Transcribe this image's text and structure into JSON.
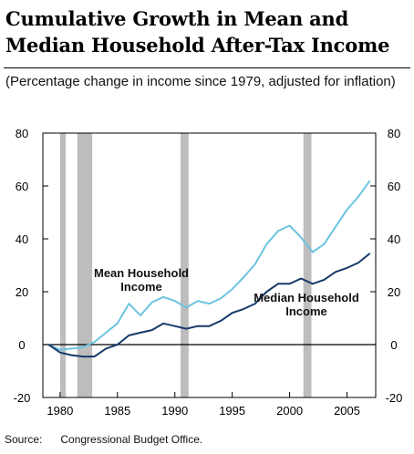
{
  "title": "Cumulative Growth in Mean and Median Household After-Tax Income",
  "subtitle": "(Percentage change in income since 1979, adjusted for inflation)",
  "source": {
    "label": "Source:",
    "text": "Congressional Budget Office."
  },
  "colors": {
    "mean": "#6cc3df",
    "median": "#163a6a",
    "recession": "#bdbdbd",
    "axis": "#000000"
  },
  "chart_data": {
    "type": "line",
    "title": "Cumulative Growth in Mean and Median Household After-Tax Income",
    "subtitle": "(Percentage change in income since 1979, adjusted for inflation)",
    "xlim": [
      1978.5,
      2007.5
    ],
    "ylim": [
      -20,
      80
    ],
    "x_ticks": [
      1980,
      1985,
      1990,
      1995,
      2000,
      2005
    ],
    "y_ticks": [
      -20,
      0,
      20,
      40,
      60,
      80
    ],
    "y_axes": "left-and-right",
    "grid": false,
    "recession_bands": [
      [
        1980.0,
        1980.5
      ],
      [
        1981.5,
        1982.8
      ],
      [
        1990.5,
        1991.2
      ],
      [
        2001.2,
        2001.9
      ]
    ],
    "x": [
      1979,
      1980,
      1981,
      1982,
      1983,
      1984,
      1985,
      1986,
      1987,
      1988,
      1989,
      1990,
      1991,
      1992,
      1993,
      1994,
      1995,
      1996,
      1997,
      1998,
      1999,
      2000,
      2001,
      2002,
      2003,
      2004,
      2005,
      2006,
      2007
    ],
    "series": [
      {
        "name": "Mean Household Income",
        "values": [
          0,
          -2,
          -1.5,
          -1,
          1,
          4.5,
          8,
          15.5,
          11,
          16,
          18,
          16.5,
          14,
          16.5,
          15.5,
          17.5,
          21,
          25.5,
          30.5,
          38,
          43,
          45,
          40.5,
          35,
          38,
          44.5,
          51,
          56,
          62
        ]
      },
      {
        "name": "Median Household Income",
        "values": [
          0,
          -3,
          -4,
          -4.5,
          -4.5,
          -1.5,
          0,
          3.5,
          4.5,
          5.5,
          8,
          7,
          6,
          7,
          7,
          9,
          12,
          13.5,
          15.5,
          20,
          23,
          23,
          25,
          23,
          24.5,
          27.5,
          29,
          31,
          34.5
        ]
      }
    ],
    "annotations": [
      {
        "series": "Mean Household Income",
        "lines": [
          "Mean Household",
          "Income"
        ]
      },
      {
        "series": "Median Household Income",
        "lines": [
          "Median Household",
          "Income"
        ]
      }
    ]
  }
}
